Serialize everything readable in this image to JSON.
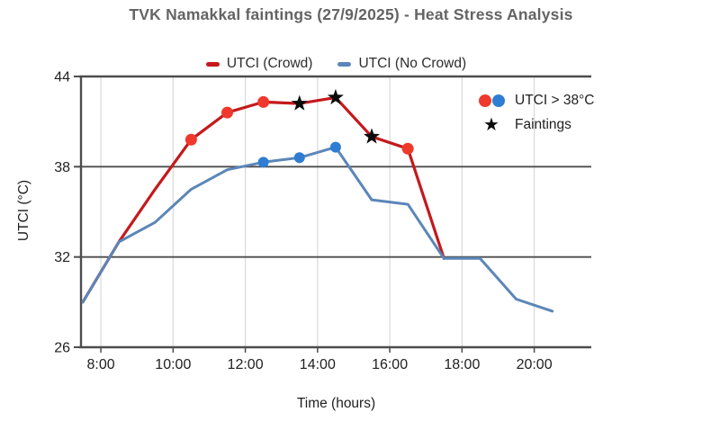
{
  "chart_data": {
    "type": "line",
    "title": "TVK Namakkal faintings (27/9/2025) - Heat Stress Analysis",
    "xlabel": "Time (hours)",
    "ylabel": "UTCI (°C)",
    "x_domain_hours": [
      7.45,
      21.58
    ],
    "ylim": [
      26,
      44
    ],
    "grid": {
      "x_ticks": [
        {
          "hour": 8,
          "label": "8:00"
        },
        {
          "hour": 10,
          "label": "10:00"
        },
        {
          "hour": 12,
          "label": "12:00"
        },
        {
          "hour": 14,
          "label": "14:00"
        },
        {
          "hour": 16,
          "label": "16:00"
        },
        {
          "hour": 18,
          "label": "18:00"
        },
        {
          "hour": 20,
          "label": "20:00"
        }
      ],
      "y_ticks": [
        {
          "value": 44,
          "label": "44"
        },
        {
          "value": 38,
          "label": "38"
        },
        {
          "value": 32,
          "label": "32"
        },
        {
          "value": 26,
          "label": "26"
        }
      ]
    },
    "series": [
      {
        "name": "UTCI (Crowd)",
        "line_color": "#c4191c",
        "marker_color": "#ef392c",
        "times": [
          "7:30",
          "8:30",
          "9:30",
          "10:30",
          "11:30",
          "12:30",
          "13:30",
          "14:30",
          "15:30",
          "16:30",
          "17:30"
        ],
        "x": [
          7.5,
          8.5,
          9.5,
          10.5,
          11.5,
          12.5,
          13.5,
          14.5,
          15.5,
          16.5,
          17.5
        ],
        "y": [
          29,
          33,
          36.5,
          39.8,
          41.6,
          42.3,
          42.2,
          42.6,
          40,
          39.2,
          31.9
        ],
        "dot_marker_x": [
          10.5,
          11.5,
          12.5,
          16.5
        ],
        "star_marker_x": [
          13.5,
          14.5,
          15.5
        ]
      },
      {
        "name": "UTCI (No Crowd)",
        "line_color": "#5b86b8",
        "marker_color": "#2e7dd2",
        "times": [
          "7:30",
          "8:30",
          "9:30",
          "10:30",
          "11:30",
          "12:30",
          "13:30",
          "14:30",
          "15:30",
          "16:30",
          "17:30",
          "18:30",
          "19:30",
          "20:30"
        ],
        "x": [
          7.5,
          8.5,
          9.5,
          10.5,
          11.5,
          12.5,
          13.5,
          14.5,
          15.5,
          16.5,
          17.5,
          18.5,
          19.5,
          20.5
        ],
        "y": [
          29,
          33,
          34.3,
          36.5,
          37.8,
          38.3,
          38.6,
          39.3,
          35.8,
          35.5,
          31.9,
          31.9,
          29.2,
          28.4
        ],
        "dot_marker_x": [
          12.5,
          13.5,
          14.5
        ],
        "star_marker_x": []
      }
    ],
    "annotations": {
      "dots_label": "UTCI > 38°C",
      "star_label": "Faintings",
      "star_color": "#0b0b0b"
    }
  }
}
